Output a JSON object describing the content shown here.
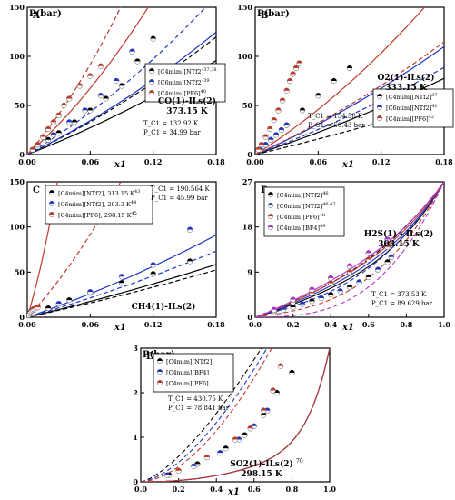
{
  "chart_data": [
    {
      "type": "scatter",
      "panel_label": "A",
      "ylabel": "P(bar)",
      "xlabel": "x1",
      "xlim": [
        0,
        0.18
      ],
      "ylim": [
        0,
        150
      ],
      "xticks": [
        0,
        0.06,
        0.12,
        0.18
      ],
      "yticks": [
        0,
        50,
        100,
        150
      ],
      "xtick_labels": [
        "0.00",
        "0.06",
        "0.12",
        "0.18"
      ],
      "ytick_labels": [
        "0",
        "50",
        "100",
        "150"
      ],
      "system": "CO(1)-ILs(2)",
      "temperature": "373.15 K",
      "critical": [
        "T_C1 = 132.92 K",
        "P_C1 = 34.99 bar"
      ],
      "series": [
        {
          "name": "[C4mim][NTf2]",
          "ref": "37,38",
          "color": "#000000",
          "points": [
            [
              0.01,
              8
            ],
            [
              0.02,
              15
            ],
            [
              0.03,
              22
            ],
            [
              0.045,
              33
            ],
            [
              0.06,
              45
            ],
            [
              0.075,
              57
            ],
            [
              0.09,
              70
            ],
            [
              0.105,
              95
            ],
            [
              0.12,
              118
            ]
          ]
        },
        {
          "name": "[C6mim][NTf2]",
          "ref": "39",
          "color": "#1f35c8",
          "points": [
            [
              0.01,
              10
            ],
            [
              0.025,
              20
            ],
            [
              0.04,
              33
            ],
            [
              0.055,
              45
            ],
            [
              0.07,
              60
            ],
            [
              0.085,
              75
            ],
            [
              0.1,
              105
            ]
          ]
        },
        {
          "name": "[C4mim][PF6]",
          "ref": "40",
          "color": "#c0392b",
          "points": [
            [
              0.005,
              5
            ],
            [
              0.01,
              10
            ],
            [
              0.015,
              18
            ],
            [
              0.02,
              26
            ],
            [
              0.025,
              33
            ],
            [
              0.03,
              40
            ],
            [
              0.035,
              50
            ],
            [
              0.04,
              57
            ],
            [
              0.05,
              70
            ],
            [
              0.06,
              80
            ],
            [
              0.07,
              90
            ]
          ]
        }
      ]
    },
    {
      "type": "scatter",
      "panel_label": "B",
      "ylabel": "P(bar)",
      "xlabel": "x1",
      "xlim": [
        0,
        0.18
      ],
      "ylim": [
        0,
        150
      ],
      "xticks": [
        0,
        0.06,
        0.12,
        0.18
      ],
      "yticks": [
        0,
        50,
        100,
        150
      ],
      "xtick_labels": [
        "0.00",
        "0.06",
        "0.12",
        "0.18"
      ],
      "ytick_labels": [
        "0",
        "50",
        "100",
        "150"
      ],
      "system": "O2(1)-ILs(2)",
      "temperature": "333.15 K",
      "critical": [
        "T_C1 = 154.58 K",
        "P_C1 = 50.43 bar"
      ],
      "series": [
        {
          "name": "[C4mim][NTf2]",
          "ref": "37",
          "color": "#000000",
          "points": [
            [
              0.015,
              15
            ],
            [
              0.03,
              30
            ],
            [
              0.045,
              45
            ],
            [
              0.06,
              60
            ],
            [
              0.075,
              75
            ],
            [
              0.09,
              88
            ]
          ]
        },
        {
          "name": "[C6mim][NTf2]",
          "ref": "41",
          "color": "#1f35c8",
          "points": [
            [
              0.005,
              5
            ],
            [
              0.01,
              10
            ],
            [
              0.015,
              15
            ],
            [
              0.02,
              20
            ],
            [
              0.025,
              25
            ],
            [
              0.03,
              30
            ]
          ]
        },
        {
          "name": "[C4mim][PF6]",
          "ref": "42",
          "color": "#c0392b",
          "points": [
            [
              0.003,
              5
            ],
            [
              0.006,
              10
            ],
            [
              0.01,
              18
            ],
            [
              0.014,
              26
            ],
            [
              0.018,
              35
            ],
            [
              0.022,
              45
            ],
            [
              0.026,
              55
            ],
            [
              0.03,
              65
            ],
            [
              0.033,
              75
            ],
            [
              0.036,
              82
            ],
            [
              0.039,
              88
            ],
            [
              0.042,
              93
            ]
          ]
        }
      ]
    },
    {
      "type": "scatter",
      "panel_label": "C",
      "ylabel": "",
      "xlabel": "x1",
      "xlim": [
        0,
        0.18
      ],
      "ylim": [
        0,
        150
      ],
      "xticks": [
        0,
        0.06,
        0.12,
        0.18
      ],
      "yticks": [
        0,
        50,
        100,
        150
      ],
      "xtick_labels": [
        "0.00",
        "0.06",
        "0.12",
        "0.18"
      ],
      "ytick_labels": [
        "0",
        "50",
        "100",
        "150"
      ],
      "system": "CH4(1)-ILs(2)",
      "temperature": "",
      "critical": [
        "T_C1 = 190.564 K",
        "P_C1 = 45.99 bar"
      ],
      "series": [
        {
          "name": "[C4mim][NTf2], 313.15 K",
          "ref": "43",
          "color": "#000000",
          "points": [
            [
              0.005,
              4
            ],
            [
              0.02,
              10
            ],
            [
              0.04,
              19
            ],
            [
              0.06,
              27
            ],
            [
              0.09,
              38
            ],
            [
              0.12,
              48
            ],
            [
              0.155,
              62
            ]
          ]
        },
        {
          "name": "[C6mim][NTf2], 293.3 K",
          "ref": "44",
          "color": "#1f35c8",
          "points": [
            [
              0.005,
              5
            ],
            [
              0.03,
              15
            ],
            [
              0.06,
              28
            ],
            [
              0.09,
              45
            ],
            [
              0.12,
              58
            ],
            [
              0.155,
              97
            ]
          ]
        },
        {
          "name": "[C4mim][PF6], 298.15 K",
          "ref": "45",
          "color": "#c0392b",
          "points": [
            [
              0.001,
              2
            ],
            [
              0.002,
              4
            ],
            [
              0.003,
              6
            ],
            [
              0.004,
              7
            ],
            [
              0.005,
              8
            ],
            [
              0.006,
              9
            ],
            [
              0.008,
              10
            ],
            [
              0.01,
              11
            ]
          ]
        }
      ]
    },
    {
      "type": "scatter",
      "panel_label": "D",
      "ylabel": "",
      "xlabel": "x1",
      "xlim": [
        0,
        1.0
      ],
      "ylim": [
        0,
        27
      ],
      "xticks": [
        0,
        0.2,
        0.4,
        0.6,
        0.8,
        1.0
      ],
      "yticks": [
        0,
        9,
        18,
        27
      ],
      "xtick_labels": [
        "0.0",
        "0.2",
        "0.4",
        "0.6",
        "0.8",
        "1.0"
      ],
      "ytick_labels": [
        "0",
        "9",
        "18",
        "27"
      ],
      "system": "H2S(1) - ILs(2)",
      "temperature": "303.15 K",
      "critical": [
        "T_C1 = 373.53 K",
        "P_C1 = 89.629 bar"
      ],
      "series": [
        {
          "name": "[C4mim][NTf2]",
          "ref": "46",
          "color": "#000000",
          "points": [
            [
              0.1,
              1
            ],
            [
              0.2,
              2
            ],
            [
              0.3,
              3.2
            ],
            [
              0.4,
              4.5
            ],
            [
              0.5,
              6
            ],
            [
              0.6,
              8
            ],
            [
              0.7,
              11
            ]
          ]
        },
        {
          "name": "[C6mim][NTf2]",
          "ref": "46,47",
          "color": "#1f35c8",
          "points": [
            [
              0.15,
              1.5
            ],
            [
              0.25,
              2.6
            ],
            [
              0.35,
              3.8
            ],
            [
              0.45,
              5.2
            ],
            [
              0.55,
              7
            ],
            [
              0.65,
              9.5
            ],
            [
              0.72,
              12
            ]
          ]
        },
        {
          "name": "[C4mim][PF6]",
          "ref": "48",
          "color": "#c0392b",
          "points": [
            [
              0.1,
              1.3
            ],
            [
              0.2,
              3
            ],
            [
              0.3,
              4.8
            ],
            [
              0.4,
              6.8
            ],
            [
              0.5,
              9
            ],
            [
              0.6,
              11.5
            ],
            [
              0.7,
              14
            ]
          ]
        },
        {
          "name": "[C4mim][BF4]",
          "ref": "49",
          "color": "#b030d0",
          "points": [
            [
              0.1,
              1.5
            ],
            [
              0.2,
              3.5
            ],
            [
              0.3,
              5.5
            ],
            [
              0.4,
              7.8
            ],
            [
              0.5,
              10.2
            ],
            [
              0.6,
              12.8
            ],
            [
              0.7,
              15.5
            ]
          ]
        }
      ]
    },
    {
      "type": "scatter",
      "panel_label": "E",
      "ylabel": "P(bar)",
      "xlabel": "x1",
      "xlim": [
        0,
        1.0
      ],
      "ylim": [
        0,
        3
      ],
      "xticks": [
        0,
        0.2,
        0.4,
        0.6,
        0.8,
        1.0
      ],
      "yticks": [
        0,
        1,
        2,
        3
      ],
      "xtick_labels": [
        "0.0",
        "0.2",
        "0.4",
        "0.6",
        "0.8",
        "1.0"
      ],
      "ytick_labels": [
        "0",
        "1",
        "2",
        "3"
      ],
      "system": "SO2(1)-ILs(2)",
      "system_ref": "70",
      "temperature": "298.15 K",
      "critical": [
        "T_C1 = 430.75 K",
        "P_C1 = 78.841 bar"
      ],
      "series": [
        {
          "name": "[C4mim][NTf2]",
          "ref": "",
          "color": "#000000",
          "points": [
            [
              0.15,
              0.15
            ],
            [
              0.3,
              0.4
            ],
            [
              0.45,
              0.75
            ],
            [
              0.55,
              1.05
            ],
            [
              0.65,
              1.5
            ],
            [
              0.72,
              2.0
            ],
            [
              0.8,
              2.45
            ]
          ]
        },
        {
          "name": "[C4mim][BF4]",
          "ref": "",
          "color": "#1f35c8",
          "points": [
            [
              0.14,
              0.15
            ],
            [
              0.28,
              0.35
            ],
            [
              0.42,
              0.65
            ],
            [
              0.52,
              0.95
            ],
            [
              0.6,
              1.25
            ],
            [
              0.67,
              1.6
            ]
          ]
        },
        {
          "name": "[C4mim][PF6]",
          "ref": "",
          "color": "#c0392b",
          "points": [
            [
              0.2,
              0.25
            ],
            [
              0.35,
              0.55
            ],
            [
              0.5,
              0.95
            ],
            [
              0.58,
              1.2
            ],
            [
              0.65,
              1.6
            ],
            [
              0.7,
              2.05
            ],
            [
              0.74,
              2.6
            ]
          ]
        }
      ]
    }
  ]
}
